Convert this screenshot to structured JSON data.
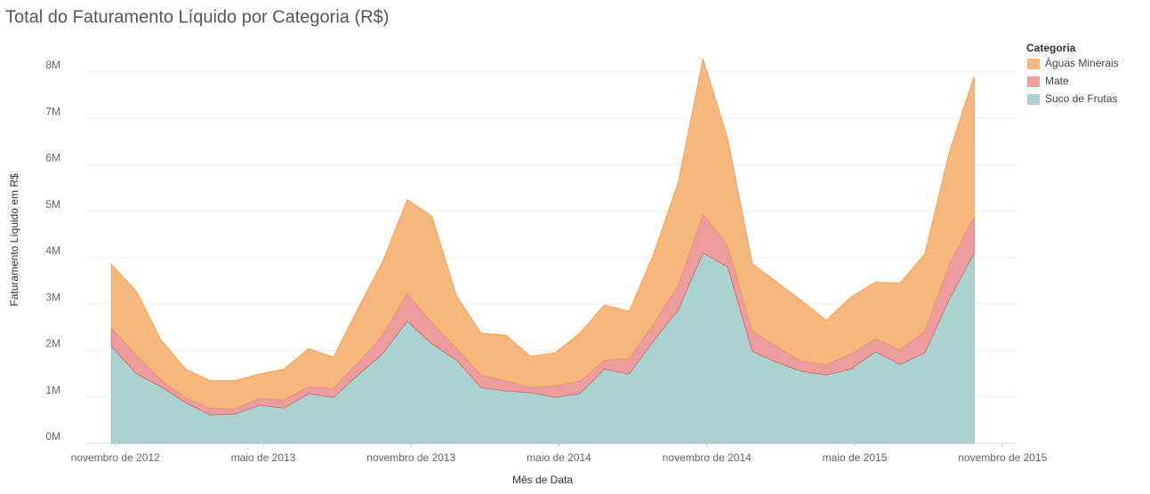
{
  "chart_data": {
    "type": "area",
    "stacked": true,
    "title": "Total do Faturamento Líquido por Categoria (R$)",
    "x_label": "Mês de Data",
    "y_label": "Faturamento Líquido em R$",
    "legend_title": "Categoria",
    "legend": "top-right",
    "grid": true,
    "x": [
      "2012-12",
      "2013-01",
      "2013-02",
      "2013-03",
      "2013-04",
      "2013-05",
      "2013-06",
      "2013-07",
      "2013-08",
      "2013-09",
      "2013-10",
      "2013-11",
      "2013-12",
      "2014-01",
      "2014-02",
      "2014-03",
      "2014-04",
      "2014-05",
      "2014-06",
      "2014-07",
      "2014-08",
      "2014-09",
      "2014-10",
      "2014-11",
      "2014-12",
      "2015-01",
      "2015-02",
      "2015-03",
      "2015-04",
      "2015-05",
      "2015-06",
      "2015-07",
      "2015-08",
      "2015-09",
      "2015-10",
      "2015-11"
    ],
    "xlim": [
      "2012-10",
      "2015-12"
    ],
    "xticks": [
      {
        "value": "2012-11",
        "label": "novembro de 2012"
      },
      {
        "value": "2013-05",
        "label": "maio de 2013"
      },
      {
        "value": "2013-11",
        "label": "novembro de 2013"
      },
      {
        "value": "2014-05",
        "label": "maio de 2014"
      },
      {
        "value": "2014-11",
        "label": "novembro de 2014"
      },
      {
        "value": "2015-05",
        "label": "maio de 2015"
      },
      {
        "value": "2015-11",
        "label": "novembro de 2015"
      }
    ],
    "ylim": [
      0,
      8400000
    ],
    "yticks": [
      {
        "value": 0,
        "label": "0M"
      },
      {
        "value": 1000000,
        "label": "1M"
      },
      {
        "value": 2000000,
        "label": "2M"
      },
      {
        "value": 3000000,
        "label": "3M"
      },
      {
        "value": 4000000,
        "label": "4M"
      },
      {
        "value": 5000000,
        "label": "5M"
      },
      {
        "value": 6000000,
        "label": "6M"
      },
      {
        "value": 7000000,
        "label": "7M"
      },
      {
        "value": 8000000,
        "label": "8M"
      }
    ],
    "series": [
      {
        "name": "Águas Minerais",
        "color": "#f5b77c",
        "line": "#f0a060",
        "values": [
          1370000,
          1380000,
          860000,
          610000,
          590000,
          610000,
          520000,
          660000,
          820000,
          670000,
          1160000,
          1580000,
          2020000,
          2290000,
          1130000,
          900000,
          980000,
          670000,
          710000,
          1030000,
          1190000,
          1010000,
          1500000,
          2210000,
          3340000,
          2300000,
          1450000,
          1390000,
          1300000,
          950000,
          1220000,
          1220000,
          1430000,
          1660000,
          2420000,
          3010000
        ]
      },
      {
        "name": "Mate",
        "color": "#ec9c9d",
        "line": "#e07070",
        "values": [
          390000,
          400000,
          150000,
          110000,
          150000,
          110000,
          150000,
          180000,
          150000,
          190000,
          270000,
          400000,
          600000,
          460000,
          250000,
          270000,
          220000,
          110000,
          250000,
          270000,
          190000,
          340000,
          370000,
          540000,
          840000,
          460000,
          440000,
          340000,
          220000,
          230000,
          330000,
          280000,
          320000,
          470000,
          750000,
          790000
        ]
      },
      {
        "name": "Suco de Frutas",
        "color": "#aad3d0",
        "line": "#8cc2be",
        "values": [
          2090000,
          1500000,
          1220000,
          880000,
          610000,
          630000,
          820000,
          760000,
          1070000,
          990000,
          1470000,
          1930000,
          2630000,
          2140000,
          1790000,
          1200000,
          1130000,
          1090000,
          990000,
          1070000,
          1600000,
          1490000,
          2210000,
          2880000,
          4100000,
          3800000,
          1980000,
          1740000,
          1550000,
          1470000,
          1600000,
          1970000,
          1700000,
          1950000,
          3110000,
          4100000
        ]
      }
    ]
  }
}
